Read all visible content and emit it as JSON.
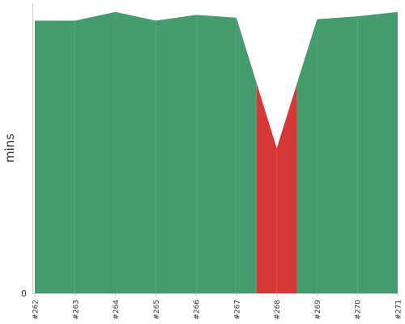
{
  "chart_data": {
    "type": "area",
    "title": "",
    "xlabel": "",
    "ylabel": "mins",
    "categories": [
      "#262",
      "#263",
      "#264",
      "#265",
      "#266",
      "#267",
      "#268",
      "#269",
      "#270",
      "#271"
    ],
    "values": [
      9.4,
      9.4,
      9.7,
      9.4,
      9.6,
      9.5,
      5.0,
      9.45,
      9.55,
      9.7
    ],
    "status": [
      "pass",
      "pass",
      "pass",
      "pass",
      "pass",
      "pass",
      "fail",
      "pass",
      "pass",
      "pass"
    ],
    "ylim": [
      0,
      10
    ],
    "yticks": [
      "0"
    ],
    "colors": {
      "pass": "#449c6e",
      "fail": "#d63838",
      "axis": "#c8c8c8",
      "text": "#333333"
    },
    "grid": false,
    "legend": "none"
  }
}
